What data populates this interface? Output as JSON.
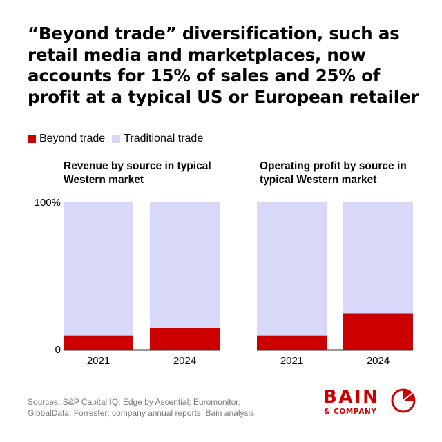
{
  "headline": "“Beyond trade” diversification, such as retail media and marketplaces, now accounts for 15% of sales and 25% of profit at a typical US or European retailer",
  "legend": [
    {
      "label": "Beyond trade",
      "color": "#cc0000"
    },
    {
      "label": "Traditional trade",
      "color": "#d8d8f8"
    }
  ],
  "chart_data": [
    {
      "type": "bar",
      "stacked": true,
      "title": "Revenue by source in typical Western market",
      "categories": [
        "2021",
        "2024"
      ],
      "series": [
        {
          "name": "Beyond trade",
          "values": [
            10,
            15
          ]
        },
        {
          "name": "Traditional trade",
          "values": [
            90,
            85
          ]
        }
      ],
      "ylim": [
        0,
        100
      ],
      "yticks": [
        "100%",
        "0"
      ]
    },
    {
      "type": "bar",
      "stacked": true,
      "title": "Operating profit by source in typical Western market",
      "categories": [
        "2021",
        "2024"
      ],
      "series": [
        {
          "name": "Beyond trade",
          "values": [
            10,
            25
          ]
        },
        {
          "name": "Traditional trade",
          "values": [
            90,
            75
          ]
        }
      ],
      "ylim": [
        0,
        100
      ]
    }
  ],
  "footer": {
    "sources": "Sources: S&P Capital IQ; Edge by Ascential; Euromonitor; GlobalData; Forrester; company annual reports; Bain analysis"
  },
  "brand": {
    "name": "BAIN",
    "sub": "& COMPANY",
    "color": "#cc0000",
    "icon": "bain-logo-icon"
  }
}
